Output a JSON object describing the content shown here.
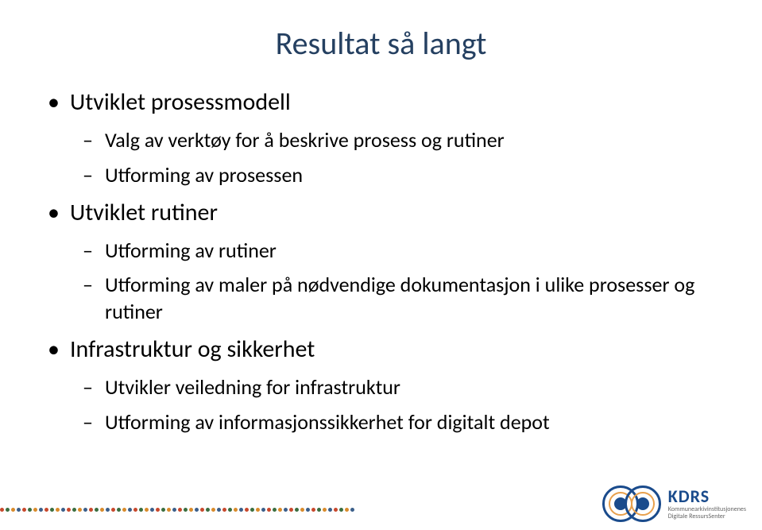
{
  "title": "Resultat så langt",
  "bullets": [
    {
      "level": 1,
      "text": "Utviklet prosessmodell"
    },
    {
      "level": 2,
      "text": "Valg av verktøy for å beskrive prosess og rutiner"
    },
    {
      "level": 2,
      "text": "Utforming av prosessen"
    },
    {
      "level": 1,
      "text": "Utviklet rutiner"
    },
    {
      "level": 2,
      "text": "Utforming av rutiner"
    },
    {
      "level": 2,
      "text": "Utforming av maler på nødvendige dokumentasjon i ulike prosesser og rutiner"
    },
    {
      "level": 1,
      "text": "Infrastruktur og sikkerhet"
    },
    {
      "level": 2,
      "text": "Utvikler veiledning for infrastruktur"
    },
    {
      "level": 2,
      "text": "Utforming av informasjonssikkerhet for digitalt depot"
    }
  ],
  "logo": {
    "acronym": "KDRS",
    "line1": "Kommunearkivinstitusjonenes",
    "line2": "Digitale RessursSenter"
  },
  "colors": {
    "title": "#254061",
    "text": "#000000",
    "background": "#ffffff",
    "logo_blue": "#1a4b8c",
    "logo_orange": "#e8a04c",
    "dot_colors": [
      "#c8482c",
      "#3a6e3f",
      "#d98b2b",
      "#3b5f8a"
    ]
  },
  "typography": {
    "title_fontsize": 40,
    "bullet1_fontsize": 30,
    "bullet2_fontsize": 26,
    "font_family": "Calibri"
  }
}
